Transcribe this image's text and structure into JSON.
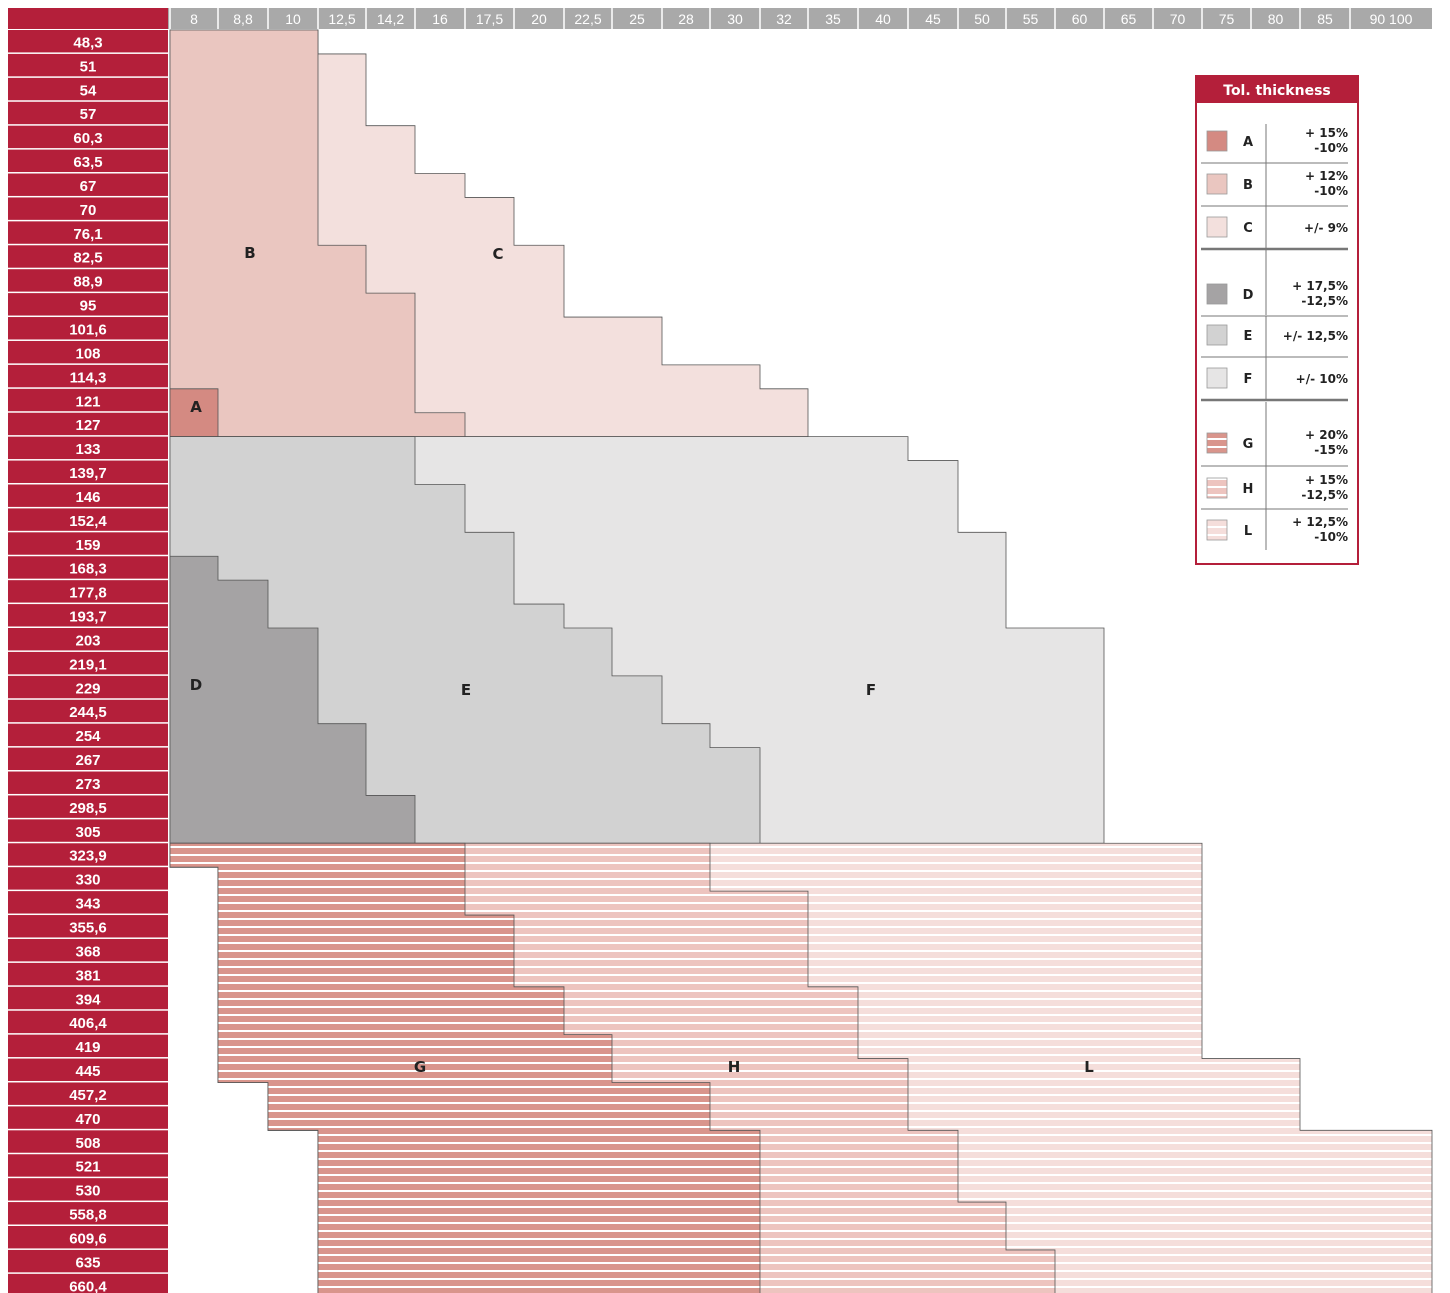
{
  "header_columns": [
    "8",
    "8,8",
    "10",
    "12,5",
    "14,2",
    "16",
    "17,5",
    "20",
    "22,5",
    "25",
    "28",
    "30",
    "32",
    "35",
    "40",
    "45",
    "50",
    "55",
    "60",
    "65",
    "70",
    "75",
    "80",
    "85",
    "90 100"
  ],
  "row_labels": [
    "48,3",
    "51",
    "54",
    "57",
    "60,3",
    "63,5",
    "67",
    "70",
    "76,1",
    "82,5",
    "88,9",
    "95",
    "101,6",
    "108",
    "114,3",
    "121",
    "127",
    "133",
    "139,7",
    "146",
    "152,4",
    "159",
    "168,3",
    "177,8",
    "193,7",
    "203",
    "219,1",
    "229",
    "244,5",
    "254",
    "267",
    "273",
    "298,5",
    "305",
    "323,9",
    "330",
    "343",
    "355,6",
    "368",
    "381",
    "394",
    "406,4",
    "419",
    "445",
    "457,2",
    "470",
    "508",
    "521",
    "530",
    "558,8",
    "609,6",
    "635",
    "660,4"
  ],
  "zones": [
    {
      "id": "A",
      "label": "A",
      "color": "#d48a82",
      "striped": false
    },
    {
      "id": "B",
      "label": "B",
      "color": "#eac6c0",
      "striped": false
    },
    {
      "id": "C",
      "label": "C",
      "color": "#f3e0dd",
      "striped": false
    },
    {
      "id": "D",
      "label": "D",
      "color": "#a5a3a4",
      "striped": false
    },
    {
      "id": "E",
      "label": "E",
      "color": "#d2d2d2",
      "striped": false
    },
    {
      "id": "F",
      "label": "F",
      "color": "#e6e5e5",
      "striped": false
    },
    {
      "id": "G",
      "label": "G",
      "color": "#d9958c",
      "striped": true
    },
    {
      "id": "H",
      "label": "H",
      "color": "#edc4bf",
      "striped": true
    },
    {
      "id": "L",
      "label": "L",
      "color": "#f5dedb",
      "striped": true
    }
  ],
  "legend": {
    "title": "Tol. thickness",
    "border_color": "#b41f3a",
    "items": [
      {
        "letter": "A",
        "tol": [
          "+ 15%",
          "-10%"
        ]
      },
      {
        "letter": "B",
        "tol": [
          "+ 12%",
          "-10%"
        ]
      },
      {
        "letter": "C",
        "tol": [
          "+/- 9%"
        ]
      },
      {
        "letter": "D",
        "tol": [
          "+ 17,5%",
          "-12,5%"
        ]
      },
      {
        "letter": "E",
        "tol": [
          "+/- 12,5%"
        ]
      },
      {
        "letter": "F",
        "tol": [
          "+/- 10%"
        ]
      },
      {
        "letter": "G",
        "tol": [
          "+ 20%",
          "-15%"
        ]
      },
      {
        "letter": "H",
        "tol": [
          "+ 15%",
          "-12,5%"
        ]
      },
      {
        "letter": "L",
        "tol": [
          "+ 12,5%",
          "-10%"
        ]
      }
    ]
  },
  "colors": {
    "row_header": "#b41f3a",
    "col_header": "#a9a9a9",
    "stripe": "#ffffff"
  }
}
